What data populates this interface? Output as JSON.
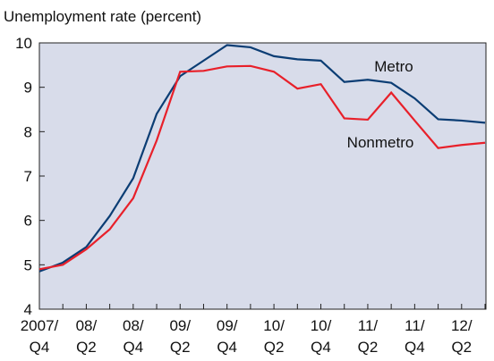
{
  "chart_data": {
    "type": "line",
    "title": "Unemployment rate (percent)",
    "categories": [
      "2007/ Q4",
      null,
      "08/ Q2",
      null,
      "08/ Q4",
      null,
      "09/ Q2",
      null,
      "09/ Q4",
      null,
      "10/ Q2",
      null,
      "10/ Q4",
      null,
      "11/ Q2",
      null,
      "11/ Q4",
      null,
      "12/ Q2",
      null
    ],
    "series": [
      {
        "name": "Metro",
        "color": "#0b3d74",
        "values": [
          4.85,
          5.05,
          5.4,
          6.1,
          6.95,
          8.4,
          9.25,
          9.6,
          9.95,
          9.9,
          9.7,
          9.63,
          9.6,
          9.12,
          9.17,
          9.1,
          8.75,
          8.28,
          8.25,
          8.2
        ]
      },
      {
        "name": "Nonmetro",
        "color": "#e8202a",
        "values": [
          4.9,
          5.0,
          5.35,
          5.8,
          6.5,
          7.8,
          9.35,
          9.37,
          9.47,
          9.48,
          9.35,
          8.97,
          9.07,
          8.3,
          8.27,
          8.88,
          8.25,
          7.63,
          7.7,
          7.75
        ]
      }
    ],
    "ylim": [
      4,
      10
    ],
    "yticks": [
      4,
      5,
      6,
      7,
      8,
      9,
      10
    ],
    "grid": false
  }
}
